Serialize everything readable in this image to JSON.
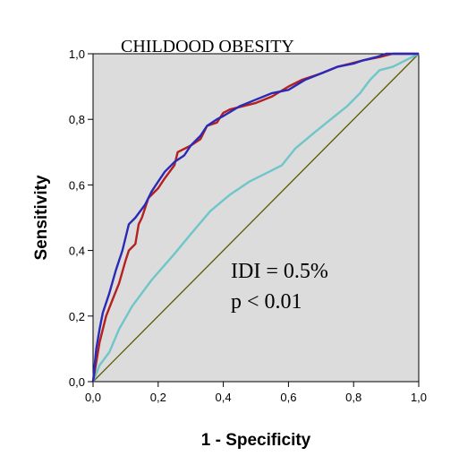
{
  "chart_data": {
    "type": "line",
    "title": "CHILDOOD OBESITY",
    "xlabel": "1 - Specificity",
    "ylabel": "Sensitivity",
    "xlim": [
      0,
      1
    ],
    "ylim": [
      0,
      1
    ],
    "xticks": [
      "0,0",
      "0,2",
      "0,4",
      "0,6",
      "0,8",
      "1,0"
    ],
    "yticks": [
      "0,0",
      "0,2",
      "0,4",
      "0,6",
      "0,8",
      "1,0"
    ],
    "annotations": [
      "IDI = 0.5%",
      "p < 0.01"
    ],
    "background_color": "#dcdcdc",
    "grid": false,
    "series": [
      {
        "color": "#2a2ab8",
        "x": [
          0,
          0.01,
          0.02,
          0.03,
          0.05,
          0.07,
          0.09,
          0.1,
          0.11,
          0.13,
          0.16,
          0.18,
          0.2,
          0.22,
          0.25,
          0.28,
          0.3,
          0.33,
          0.35,
          0.38,
          0.4,
          0.45,
          0.5,
          0.55,
          0.6,
          0.65,
          0.7,
          0.75,
          0.8,
          0.83,
          0.87,
          0.9,
          0.95,
          1.0
        ],
        "y": [
          0,
          0.1,
          0.16,
          0.21,
          0.27,
          0.34,
          0.4,
          0.44,
          0.48,
          0.5,
          0.54,
          0.58,
          0.61,
          0.64,
          0.67,
          0.69,
          0.72,
          0.75,
          0.78,
          0.8,
          0.81,
          0.84,
          0.86,
          0.88,
          0.89,
          0.92,
          0.94,
          0.96,
          0.97,
          0.98,
          0.99,
          1.0,
          1.0,
          1.0
        ]
      },
      {
        "color": "#b52020",
        "x": [
          0,
          0.02,
          0.04,
          0.06,
          0.08,
          0.1,
          0.11,
          0.13,
          0.14,
          0.15,
          0.17,
          0.2,
          0.22,
          0.25,
          0.26,
          0.3,
          0.33,
          0.35,
          0.38,
          0.4,
          0.42,
          0.46,
          0.5,
          0.55,
          0.6,
          0.64,
          0.7,
          0.75,
          0.79,
          0.83,
          0.88,
          0.92,
          1.0
        ],
        "y": [
          0,
          0.12,
          0.2,
          0.25,
          0.3,
          0.37,
          0.4,
          0.42,
          0.48,
          0.5,
          0.56,
          0.59,
          0.62,
          0.66,
          0.7,
          0.72,
          0.74,
          0.78,
          0.79,
          0.82,
          0.83,
          0.84,
          0.85,
          0.87,
          0.9,
          0.92,
          0.94,
          0.96,
          0.97,
          0.98,
          0.99,
          1.0,
          1.0
        ]
      },
      {
        "color": "#6fc6c9",
        "x": [
          0,
          0.02,
          0.05,
          0.08,
          0.12,
          0.18,
          0.25,
          0.3,
          0.36,
          0.42,
          0.48,
          0.54,
          0.58,
          0.62,
          0.68,
          0.73,
          0.78,
          0.82,
          0.85,
          0.88,
          0.92,
          0.96,
          1.0
        ],
        "y": [
          0,
          0.05,
          0.09,
          0.16,
          0.23,
          0.31,
          0.39,
          0.45,
          0.52,
          0.57,
          0.61,
          0.64,
          0.66,
          0.71,
          0.76,
          0.8,
          0.84,
          0.88,
          0.92,
          0.95,
          0.96,
          0.98,
          1.0
        ]
      },
      {
        "color": "#5a5a00",
        "x": [
          0,
          1
        ],
        "y": [
          0,
          1
        ]
      }
    ]
  }
}
